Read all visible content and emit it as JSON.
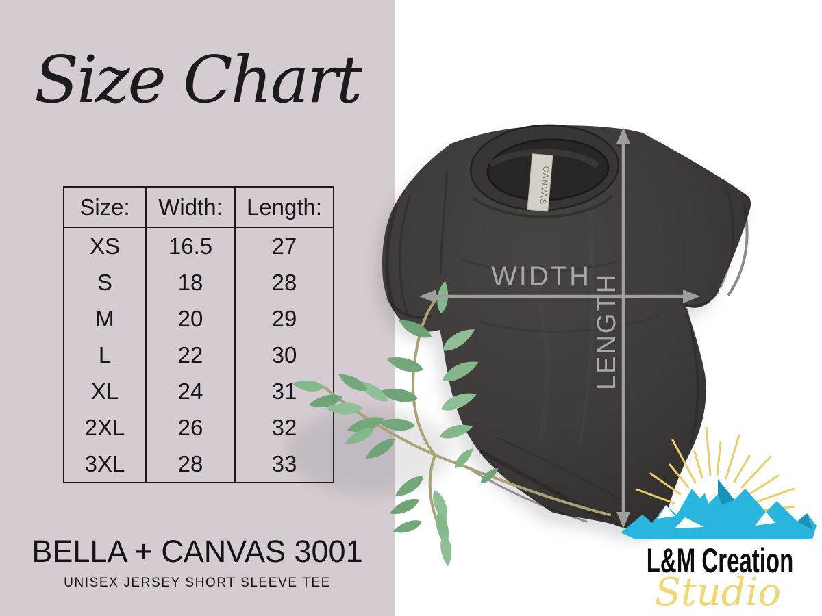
{
  "header": {
    "title": "Size Chart"
  },
  "size_table": {
    "columns": [
      "Size:",
      "Width:",
      "Length:"
    ],
    "rows": [
      [
        "XS",
        "16.5",
        "27"
      ],
      [
        "S",
        "18",
        "28"
      ],
      [
        "M",
        "20",
        "29"
      ],
      [
        "L",
        "22",
        "30"
      ],
      [
        "XL",
        "24",
        "31"
      ],
      [
        "2XL",
        "26",
        "32"
      ],
      [
        "3XL",
        "28",
        "33"
      ]
    ]
  },
  "product": {
    "name": "BELLA + CANVAS 3001",
    "subtitle": "UNISEX JERSEY SHORT SLEEVE TEE"
  },
  "measurements": {
    "width_label": "WIDTH",
    "length_label": "LENGTH"
  },
  "shirt": {
    "neck_tag": "CANVAS"
  },
  "logo": {
    "name": "L&M Creation",
    "studio": "Studio"
  },
  "colors": {
    "panel": "#d5ccd3",
    "background": "#ffffff",
    "table_ink": "#1a1a1a",
    "shirt": "#3d3a39",
    "arrow": "#9e9e9e",
    "measure_text": "#a8a8a8",
    "leaf": "#7cae82",
    "mountain": "#29b5dd",
    "sun_rays": "#e9cf66",
    "studio_script": "#f1d76f"
  },
  "chart_data": {
    "type": "table",
    "title": "Size Chart",
    "columns": [
      "Size:",
      "Width:",
      "Length:"
    ],
    "rows": [
      [
        "XS",
        "16.5",
        "27"
      ],
      [
        "S",
        "18",
        "28"
      ],
      [
        "M",
        "20",
        "29"
      ],
      [
        "L",
        "22",
        "30"
      ],
      [
        "XL",
        "24",
        "31"
      ],
      [
        "2XL",
        "26",
        "32"
      ],
      [
        "3XL",
        "28",
        "33"
      ]
    ],
    "annotations": [
      "WIDTH",
      "LENGTH",
      "BELLA + CANVAS 3001",
      "UNISEX JERSEY SHORT SLEEVE TEE"
    ]
  }
}
